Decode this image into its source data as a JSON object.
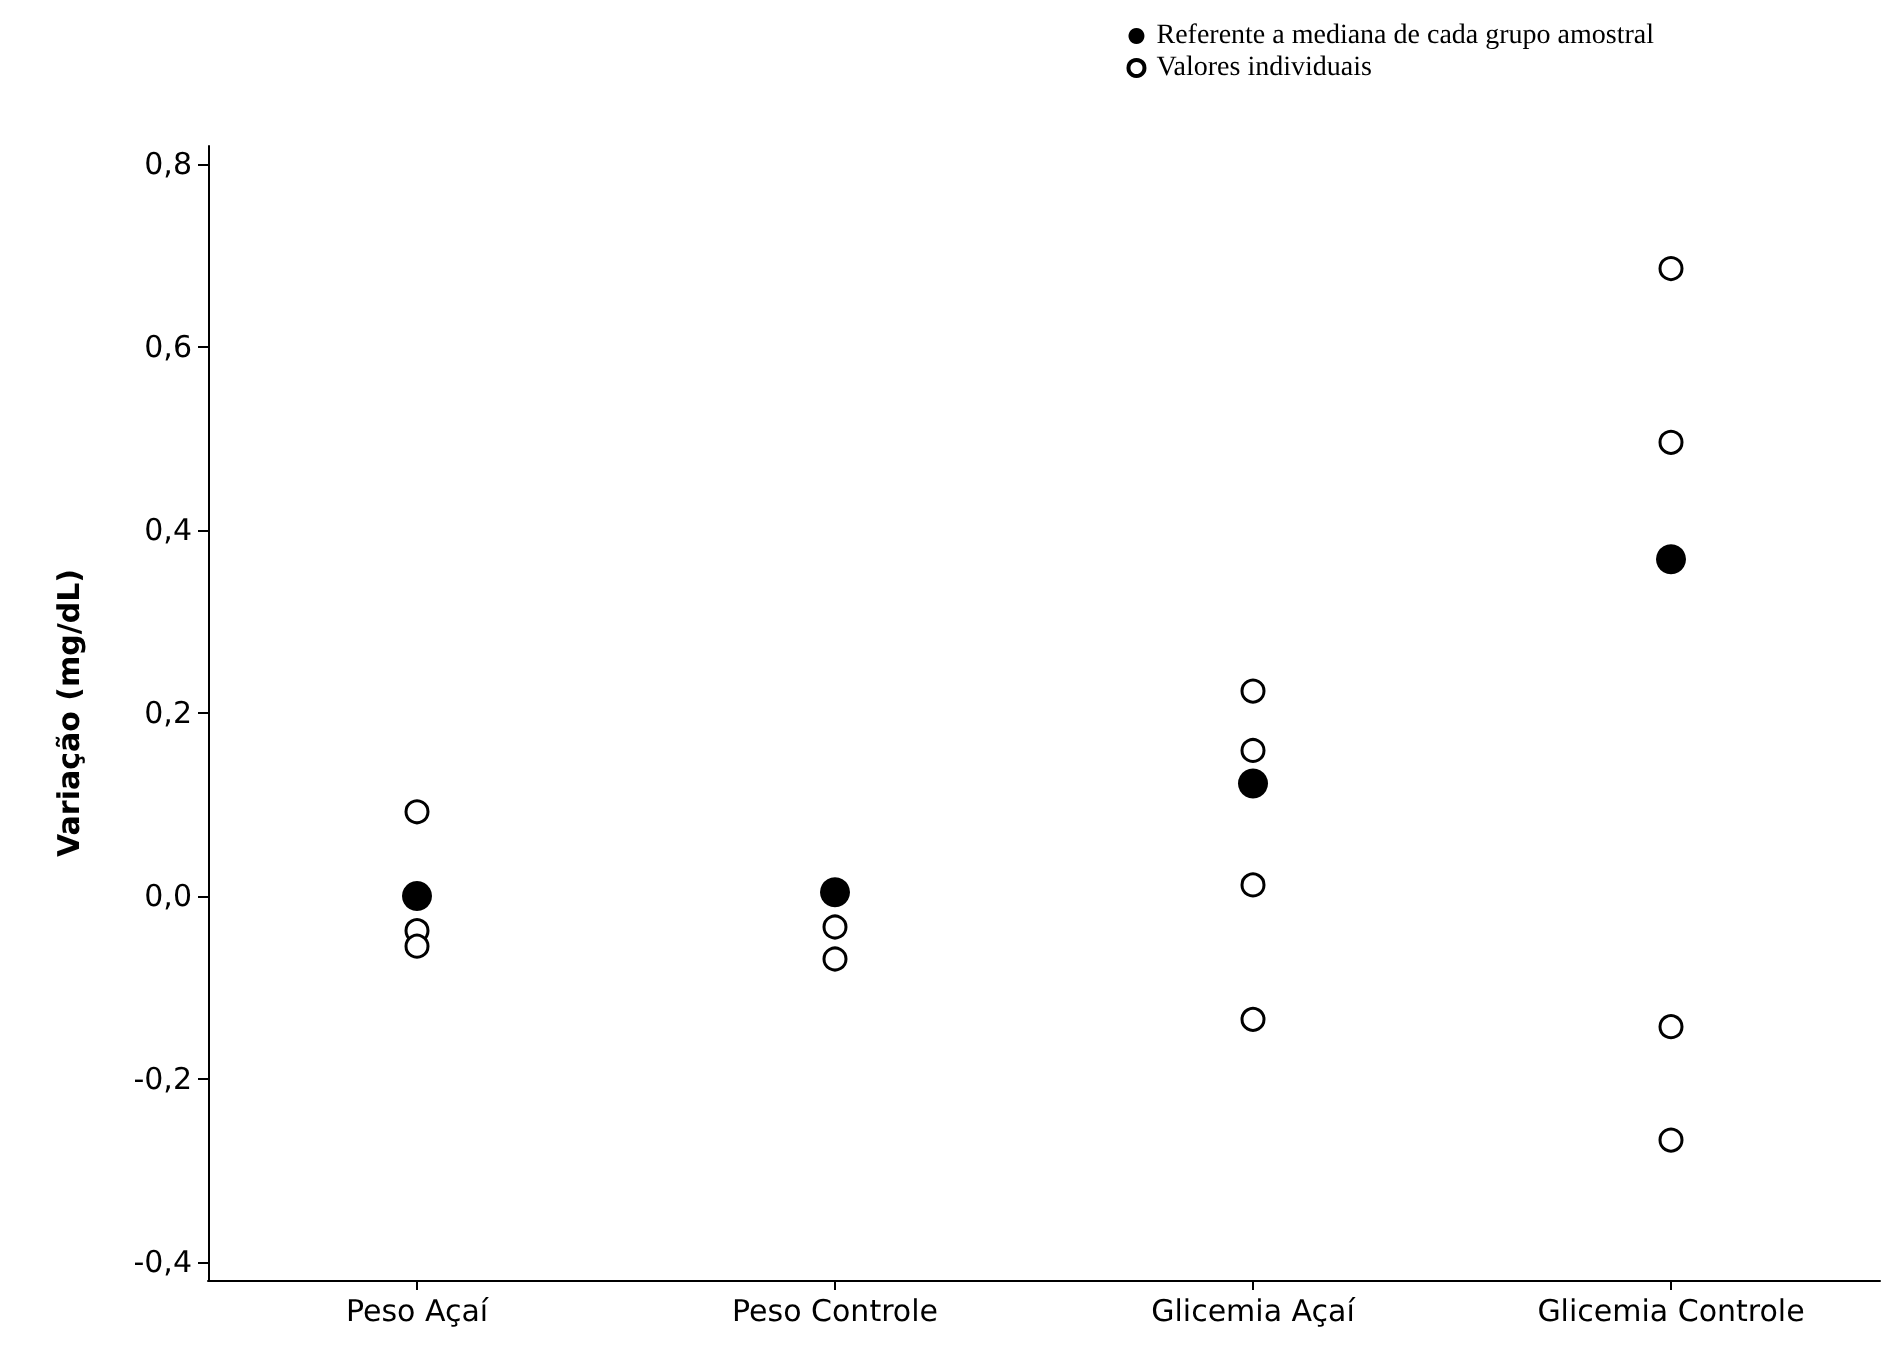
{
  "chart_data": {
    "type": "scatter",
    "ylabel": "Variação (mg/dL)",
    "categories": [
      "Peso Açaí",
      "Peso Controle",
      "Glicemia Açaí",
      "Glicemia Controle"
    ],
    "series": [
      {
        "name": "Referente a mediana de cada grupo amostral",
        "color": "#000000",
        "marker": "circle",
        "x": [
          "Peso Açaí",
          "Peso Controle",
          "Glicemia Açaí",
          "Glicemia Controle"
        ],
        "values": [
          0.0,
          0.004,
          0.123,
          0.368
        ]
      },
      {
        "name": "Valores individuais",
        "color": "#000000",
        "marker": "circle",
        "x": [
          "Peso Açaí",
          "Peso Açaí",
          "Peso Açaí",
          "Peso Controle",
          "Peso Controle",
          "Glicemia Açaí",
          "Glicemia Açaí",
          "Glicemia Açaí",
          "Glicemia Açaí",
          "Glicemia Controle",
          "Glicemia Controle",
          "Glicemia Controle",
          "Glicemia Controle"
        ],
        "values": [
          0.092,
          -0.038,
          -0.055,
          -0.034,
          -0.069,
          0.224,
          0.159,
          0.012,
          -0.135,
          0.686,
          0.496,
          -0.143,
          -0.267
        ]
      }
    ],
    "ylim": [
      -0.42,
      0.82
    ],
    "yticks": [
      {
        "value": -0.4,
        "label": "-0,4"
      },
      {
        "value": -0.2,
        "label": "-0,2"
      },
      {
        "value": 0,
        "label": "0,0"
      },
      {
        "value": 0.2,
        "label": "0,2"
      },
      {
        "value": 0.4,
        "label": "0,4"
      },
      {
        "value": 0.6,
        "label": "0,6"
      },
      {
        "value": 0.8,
        "label": "0,8"
      }
    ],
    "grid": false,
    "legend": "top right"
  }
}
